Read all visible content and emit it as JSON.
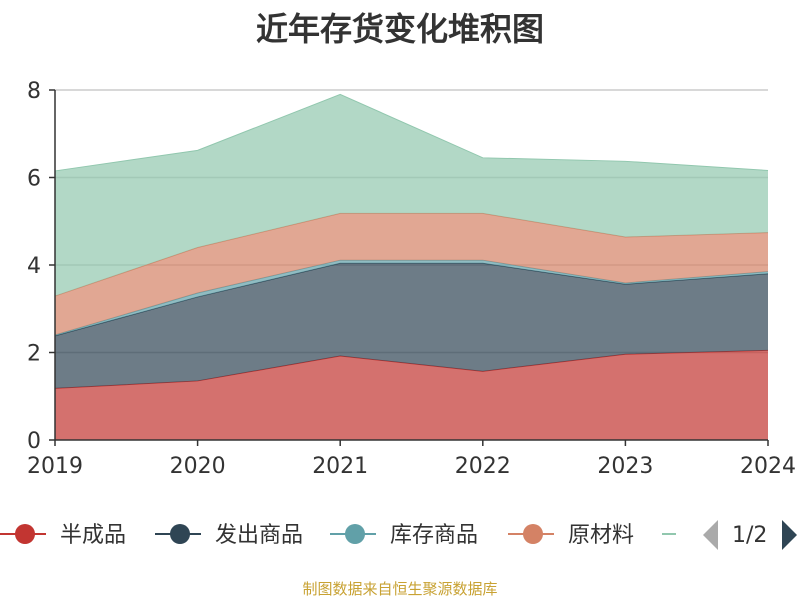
{
  "chart_data": {
    "type": "area",
    "stacked": true,
    "title": "近年存货变化堆积图",
    "xlabel": "",
    "ylabel": "",
    "ylim": [
      0,
      8
    ],
    "yticks": [
      0,
      2,
      4,
      6,
      8
    ],
    "grid": true,
    "categories": [
      "2019",
      "2020",
      "2021",
      "2022",
      "2023",
      "2024"
    ],
    "series": [
      {
        "name": "半成品",
        "color": "#c23531",
        "values": [
          1.18,
          1.35,
          1.92,
          1.57,
          1.96,
          2.05
        ]
      },
      {
        "name": "发出商品",
        "color": "#2f4554",
        "values": [
          1.2,
          1.92,
          2.12,
          2.47,
          1.6,
          1.75
        ]
      },
      {
        "name": "库存商品",
        "color": "#61a0a8",
        "values": [
          0.02,
          0.09,
          0.07,
          0.07,
          0.03,
          0.05
        ]
      },
      {
        "name": "原材料",
        "color": "#d48265",
        "values": [
          0.89,
          1.04,
          1.07,
          1.07,
          1.05,
          0.89
        ]
      },
      {
        "name": "",
        "color": "#91c7ae",
        "values": [
          2.86,
          2.22,
          2.72,
          1.27,
          1.73,
          1.42
        ]
      }
    ],
    "legend": {
      "position": "bottom",
      "page": "1/2"
    }
  },
  "source_note": "制图数据来自恒生聚源数据库"
}
